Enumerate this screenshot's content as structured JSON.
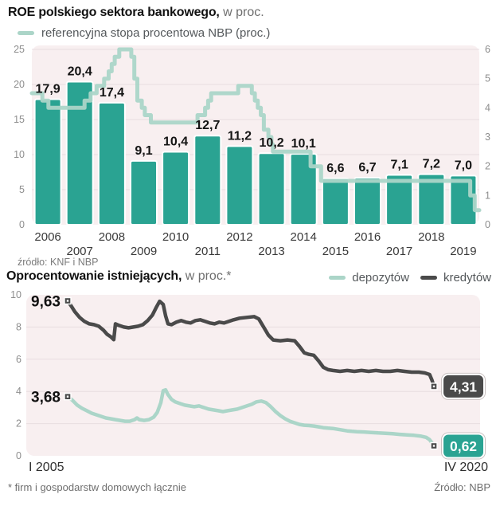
{
  "top_chart": {
    "title_bold": "ROE polskiego sektora bankowego,",
    "title_rest": " w proc.",
    "legend": [
      {
        "label": "referencyjna stopa procentowa NBP (proc.)",
        "color": "#ABD5C8"
      }
    ],
    "source": "źródło: KNF i NBP"
  },
  "bottom_chart": {
    "title_bold": "Oprocentowanie istniejących,",
    "title_rest": " w proc.*",
    "legend": [
      {
        "label": "depozytów",
        "color": "#ABD5C8"
      },
      {
        "label": "kredytów",
        "color": "#4A4A4A"
      }
    ],
    "footnote": "* firm i gospodarstw domowych łącznie",
    "source": "Źródło: NBP"
  },
  "colors": {
    "bar": "#2AA392",
    "bar_outline": "#FFFFFF",
    "nbp_line": "#ABD5C8",
    "deposits_line": "#ABD5C8",
    "credits_line": "#4A4A4A",
    "deposits_badge": "#2AA392",
    "credits_badge": "#4A4A4A",
    "plot_bg": "#F8EFF0",
    "grid": "#E8DEE0",
    "axis_text": "#8E8E8E",
    "year_text": "#3A3A3A",
    "value_text": "#141414",
    "badge_text": "#FFFFFF",
    "marker": "#4A4A4A"
  },
  "chart_data": [
    {
      "type": "bar",
      "title": "ROE polskiego sektora bankowego, w proc.",
      "categories": [
        "2006",
        "2007",
        "2008",
        "2009",
        "2010",
        "2011",
        "2012",
        "2013",
        "2014",
        "2015",
        "2016",
        "2017",
        "2018",
        "2019"
      ],
      "values": [
        17.9,
        20.4,
        17.4,
        9.1,
        10.4,
        12.7,
        11.2,
        10.2,
        10.1,
        6.6,
        6.7,
        7.1,
        7.2,
        7.0
      ],
      "value_labels": [
        "17,9",
        "20,4",
        "17,4",
        "9,1",
        "10,4",
        "12,7",
        "11,2",
        "10,2",
        "10,1",
        "6,6",
        "6,7",
        "7,1",
        "7,2",
        "7,0"
      ],
      "left_axis": {
        "ticks": [
          0,
          5,
          10,
          15,
          20,
          25
        ],
        "range": [
          0,
          25
        ]
      },
      "right_axis": {
        "ticks": [
          0,
          1,
          2,
          3,
          4,
          5,
          6
        ],
        "range": [
          0,
          6
        ]
      },
      "overlay_line": {
        "name": "referencyjna stopa procentowa NBP (proc.)",
        "style": "step",
        "x_range": [
          2005.55,
          2020.4
        ],
        "points": [
          [
            2005.55,
            4.5
          ],
          [
            2005.9,
            4.25
          ],
          [
            2006.1,
            4.0
          ],
          [
            2007.3,
            4.25
          ],
          [
            2007.5,
            4.5
          ],
          [
            2007.7,
            4.75
          ],
          [
            2007.95,
            5.0
          ],
          [
            2008.1,
            5.25
          ],
          [
            2008.2,
            5.5
          ],
          [
            2008.3,
            5.75
          ],
          [
            2008.45,
            6.0
          ],
          [
            2008.85,
            5.75
          ],
          [
            2008.95,
            5.0
          ],
          [
            2009.05,
            4.25
          ],
          [
            2009.2,
            4.0
          ],
          [
            2009.3,
            3.75
          ],
          [
            2009.5,
            3.5
          ],
          [
            2011.05,
            3.75
          ],
          [
            2011.3,
            4.0
          ],
          [
            2011.4,
            4.25
          ],
          [
            2011.5,
            4.5
          ],
          [
            2012.4,
            4.75
          ],
          [
            2012.85,
            4.5
          ],
          [
            2012.95,
            4.25
          ],
          [
            2013.05,
            4.0
          ],
          [
            2013.15,
            3.75
          ],
          [
            2013.25,
            3.25
          ],
          [
            2013.4,
            3.0
          ],
          [
            2013.5,
            2.75
          ],
          [
            2013.55,
            2.5
          ],
          [
            2014.8,
            2.0
          ],
          [
            2015.15,
            1.5
          ],
          [
            2020.1,
            1.0
          ],
          [
            2020.25,
            0.5
          ],
          [
            2020.4,
            0.5
          ]
        ]
      }
    },
    {
      "type": "line",
      "title": "Oprocentowanie istniejących, w proc.*",
      "x_axis": {
        "start_label": "I 2005",
        "end_label": "IV 2020",
        "range": [
          2005.0,
          2020.33
        ]
      },
      "y_axis": {
        "ticks": [
          0,
          2,
          4,
          6,
          8,
          10
        ],
        "range": [
          0,
          10
        ]
      },
      "series": [
        {
          "name": "kredytów",
          "start_label": "9,63",
          "end_label": "4,31",
          "line_color_key": "credits_line",
          "badge_color_key": "credits_badge",
          "points": [
            [
              2005.0,
              9.63
            ],
            [
              2005.15,
              9.3
            ],
            [
              2005.3,
              8.95
            ],
            [
              2005.5,
              8.6
            ],
            [
              2005.7,
              8.35
            ],
            [
              2005.9,
              8.2
            ],
            [
              2006.1,
              8.15
            ],
            [
              2006.3,
              8.05
            ],
            [
              2006.5,
              7.8
            ],
            [
              2006.65,
              7.55
            ],
            [
              2006.8,
              7.4
            ],
            [
              2006.93,
              7.22
            ],
            [
              2007.0,
              8.2
            ],
            [
              2007.15,
              8.1
            ],
            [
              2007.35,
              8.0
            ],
            [
              2007.55,
              7.95
            ],
            [
              2007.75,
              8.0
            ],
            [
              2007.95,
              8.05
            ],
            [
              2008.15,
              8.15
            ],
            [
              2008.35,
              8.4
            ],
            [
              2008.55,
              8.75
            ],
            [
              2008.7,
              9.2
            ],
            [
              2008.85,
              9.6
            ],
            [
              2009.0,
              9.4
            ],
            [
              2009.1,
              8.7
            ],
            [
              2009.2,
              8.2
            ],
            [
              2009.35,
              8.15
            ],
            [
              2009.55,
              8.3
            ],
            [
              2009.75,
              8.4
            ],
            [
              2009.95,
              8.3
            ],
            [
              2010.15,
              8.25
            ],
            [
              2010.35,
              8.4
            ],
            [
              2010.55,
              8.45
            ],
            [
              2010.75,
              8.35
            ],
            [
              2010.95,
              8.25
            ],
            [
              2011.15,
              8.2
            ],
            [
              2011.35,
              8.3
            ],
            [
              2011.55,
              8.25
            ],
            [
              2011.75,
              8.35
            ],
            [
              2011.95,
              8.45
            ],
            [
              2012.2,
              8.55
            ],
            [
              2012.5,
              8.6
            ],
            [
              2012.8,
              8.65
            ],
            [
              2013.0,
              8.5
            ],
            [
              2013.2,
              8.0
            ],
            [
              2013.4,
              7.5
            ],
            [
              2013.6,
              7.2
            ],
            [
              2013.9,
              7.15
            ],
            [
              2014.2,
              7.2
            ],
            [
              2014.5,
              7.15
            ],
            [
              2014.7,
              6.8
            ],
            [
              2014.9,
              6.4
            ],
            [
              2015.1,
              6.3
            ],
            [
              2015.3,
              6.25
            ],
            [
              2015.5,
              5.9
            ],
            [
              2015.7,
              5.5
            ],
            [
              2015.9,
              5.35
            ],
            [
              2016.1,
              5.3
            ],
            [
              2016.4,
              5.25
            ],
            [
              2016.7,
              5.3
            ],
            [
              2017.0,
              5.25
            ],
            [
              2017.3,
              5.3
            ],
            [
              2017.6,
              5.25
            ],
            [
              2017.9,
              5.3
            ],
            [
              2018.2,
              5.25
            ],
            [
              2018.5,
              5.25
            ],
            [
              2018.8,
              5.3
            ],
            [
              2019.1,
              5.25
            ],
            [
              2019.4,
              5.2
            ],
            [
              2019.7,
              5.2
            ],
            [
              2019.95,
              5.15
            ],
            [
              2020.15,
              5.05
            ],
            [
              2020.25,
              4.7
            ],
            [
              2020.33,
              4.31
            ]
          ]
        },
        {
          "name": "depozytów",
          "start_label": "3,68",
          "end_label": "0,62",
          "line_color_key": "deposits_line",
          "badge_color_key": "deposits_badge",
          "points": [
            [
              2005.0,
              3.68
            ],
            [
              2005.2,
              3.45
            ],
            [
              2005.4,
              3.15
            ],
            [
              2005.6,
              2.95
            ],
            [
              2005.8,
              2.8
            ],
            [
              2006.0,
              2.65
            ],
            [
              2006.2,
              2.55
            ],
            [
              2006.4,
              2.45
            ],
            [
              2006.6,
              2.35
            ],
            [
              2006.8,
              2.3
            ],
            [
              2007.0,
              2.25
            ],
            [
              2007.2,
              2.2
            ],
            [
              2007.4,
              2.15
            ],
            [
              2007.6,
              2.15
            ],
            [
              2007.8,
              2.25
            ],
            [
              2007.9,
              2.35
            ],
            [
              2008.0,
              2.25
            ],
            [
              2008.2,
              2.2
            ],
            [
              2008.4,
              2.25
            ],
            [
              2008.6,
              2.4
            ],
            [
              2008.75,
              2.7
            ],
            [
              2008.9,
              3.3
            ],
            [
              2009.0,
              4.05
            ],
            [
              2009.1,
              4.1
            ],
            [
              2009.2,
              3.8
            ],
            [
              2009.35,
              3.5
            ],
            [
              2009.5,
              3.35
            ],
            [
              2009.7,
              3.25
            ],
            [
              2009.9,
              3.15
            ],
            [
              2010.1,
              3.1
            ],
            [
              2010.3,
              3.05
            ],
            [
              2010.5,
              3.1
            ],
            [
              2010.7,
              3.0
            ],
            [
              2010.9,
              2.9
            ],
            [
              2011.1,
              2.85
            ],
            [
              2011.3,
              2.8
            ],
            [
              2011.5,
              2.75
            ],
            [
              2011.7,
              2.8
            ],
            [
              2011.9,
              2.85
            ],
            [
              2012.1,
              2.9
            ],
            [
              2012.3,
              3.0
            ],
            [
              2012.5,
              3.1
            ],
            [
              2012.7,
              3.2
            ],
            [
              2012.9,
              3.35
            ],
            [
              2013.1,
              3.4
            ],
            [
              2013.3,
              3.3
            ],
            [
              2013.5,
              3.05
            ],
            [
              2013.7,
              2.75
            ],
            [
              2013.9,
              2.5
            ],
            [
              2014.1,
              2.3
            ],
            [
              2014.3,
              2.15
            ],
            [
              2014.5,
              2.05
            ],
            [
              2014.7,
              1.95
            ],
            [
              2014.9,
              1.9
            ],
            [
              2015.1,
              1.88
            ],
            [
              2015.3,
              1.85
            ],
            [
              2015.5,
              1.8
            ],
            [
              2015.7,
              1.75
            ],
            [
              2015.9,
              1.72
            ],
            [
              2016.1,
              1.7
            ],
            [
              2016.3,
              1.65
            ],
            [
              2016.5,
              1.6
            ],
            [
              2016.7,
              1.55
            ],
            [
              2016.9,
              1.52
            ],
            [
              2017.1,
              1.5
            ],
            [
              2017.4,
              1.48
            ],
            [
              2017.7,
              1.45
            ],
            [
              2018.0,
              1.42
            ],
            [
              2018.3,
              1.4
            ],
            [
              2018.6,
              1.37
            ],
            [
              2018.9,
              1.33
            ],
            [
              2019.2,
              1.3
            ],
            [
              2019.5,
              1.27
            ],
            [
              2019.8,
              1.22
            ],
            [
              2020.0,
              1.15
            ],
            [
              2020.15,
              1.0
            ],
            [
              2020.25,
              0.8
            ],
            [
              2020.33,
              0.62
            ]
          ]
        }
      ]
    }
  ]
}
